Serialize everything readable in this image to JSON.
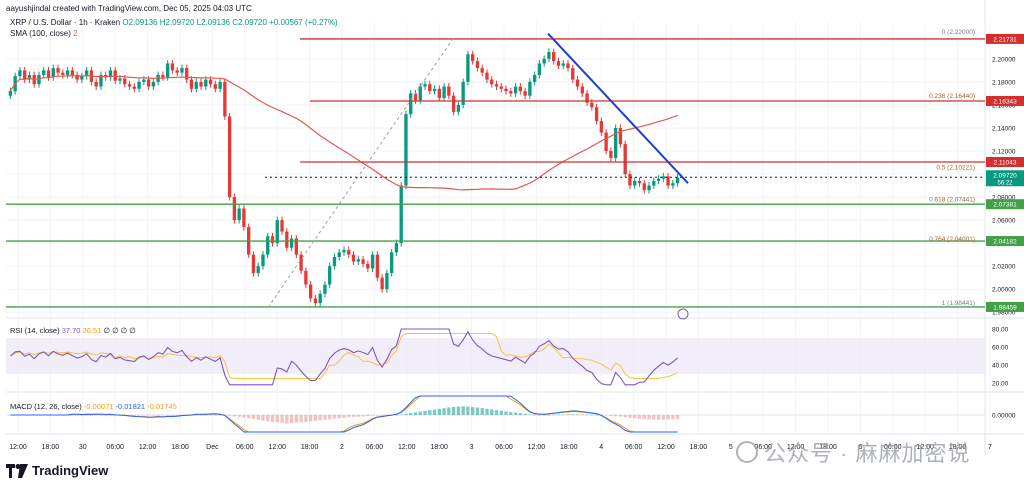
{
  "header": {
    "credit": "aayushjindal created with TradingView.com, Dec 05, 2025 04:03 UTC",
    "symbol": "XRP / U.S. Dollar · 1h · Kraken",
    "ohlc": "O2.09136 H2.09720 L2.09136 C2.09720 +0.00567 (+0.27%)",
    "sma_label": "SMA (100, close)",
    "sma_value": "2"
  },
  "rsi": {
    "label": "RSI (14, close)",
    "v1": "37.70",
    "v2": "26.51",
    "zeros": "∅ ∅ ∅ ∅"
  },
  "macd": {
    "label": "MACD (12, 26, close)",
    "v1": "-0.00071",
    "v2": "-0.01821",
    "v3": "-0.01745"
  },
  "brand": "TradingView",
  "watermark": "公众号 · 麻麻加密说",
  "colors": {
    "up": "#089981",
    "down": "#e53935",
    "sma": "#e05a4f",
    "trend": "#1e3fd6",
    "support": "#43a047",
    "resistance": "#d32f2f",
    "rsi": "#7e57c2",
    "rsi_ma": "#f5c242",
    "macd": "#2962ff",
    "signal": "#ff9800"
  },
  "chart_data": {
    "type": "candlestick",
    "y_ticks": [
      "2.20000",
      "2.18000",
      "2.16000",
      "2.14000",
      "2.12000",
      "2.10000",
      "2.08000",
      "2.06000",
      "2.04000",
      "2.02000",
      "2.00000",
      "1.98000"
    ],
    "ylim": [
      1.975,
      2.232
    ],
    "x_ticks": [
      "12:00",
      "18:00",
      "30",
      "06:00",
      "12:00",
      "18:00",
      "Dec",
      "06:00",
      "12:00",
      "18:00",
      "2",
      "06:00",
      "12:00",
      "18:00",
      "3",
      "06:00",
      "12:00",
      "18:00",
      "4",
      "06:00",
      "12:00",
      "18:00",
      "5",
      "06:00",
      "12:00",
      "18:00",
      "6",
      "06:00",
      "12:00",
      "18:00",
      "7"
    ],
    "horizontal_levels": [
      {
        "value": 2.21731,
        "label": "2.21731",
        "kind": "resistance"
      },
      {
        "value": 2.16343,
        "label": "2.16343",
        "kind": "resistance"
      },
      {
        "value": 2.11043,
        "label": "2.11043",
        "kind": "resistance"
      },
      {
        "value": 2.07381,
        "label": "2.07381",
        "kind": "support"
      },
      {
        "value": 2.04182,
        "label": "2.04182",
        "kind": "support"
      },
      {
        "value": 1.98459,
        "label": "1.98459",
        "kind": "support"
      }
    ],
    "last_price": {
      "value": 2.0972,
      "label": "2.09720",
      "countdown": "56:22"
    },
    "fib_levels": [
      {
        "ratio": "0",
        "value": "2.22000"
      },
      {
        "ratio": "0.236",
        "value": "2.16440"
      },
      {
        "ratio": "0.5",
        "value": "2.10221"
      },
      {
        "ratio": "0.618",
        "value": "2.07441"
      },
      {
        "ratio": "0.764",
        "value": "2.04001"
      },
      {
        "ratio": "1",
        "value": "1.98441"
      }
    ],
    "rsi_ticks": [
      "80.00",
      "60.00",
      "40.00",
      "20.00"
    ],
    "macd_ticks": [
      "0.00000"
    ],
    "closes": [
      2.172,
      2.185,
      2.19,
      2.182,
      2.186,
      2.178,
      2.186,
      2.19,
      2.184,
      2.192,
      2.188,
      2.186,
      2.19,
      2.186,
      2.182,
      2.185,
      2.19,
      2.18,
      2.176,
      2.186,
      2.184,
      2.19,
      2.181,
      2.183,
      2.178,
      2.176,
      2.174,
      2.18,
      2.182,
      2.176,
      2.18,
      2.186,
      2.184,
      2.196,
      2.19,
      2.188,
      2.192,
      2.182,
      2.174,
      2.18,
      2.176,
      2.182,
      2.178,
      2.174,
      2.18,
      2.15,
      2.08,
      2.06,
      2.07,
      2.054,
      2.03,
      2.014,
      2.02,
      2.03,
      2.046,
      2.04,
      2.06,
      2.05,
      2.036,
      2.044,
      2.03,
      2.016,
      2.004,
      1.992,
      1.988,
      1.996,
      2.004,
      2.02,
      2.028,
      2.032,
      2.034,
      2.03,
      2.024,
      2.026,
      2.022,
      2.018,
      2.03,
      2.01,
      2.0,
      2.014,
      2.032,
      2.04,
      2.09,
      2.152,
      2.17,
      2.164,
      2.176,
      2.178,
      2.172,
      2.174,
      2.166,
      2.176,
      2.168,
      2.154,
      2.16,
      2.18,
      2.204,
      2.198,
      2.192,
      2.188,
      2.182,
      2.178,
      2.176,
      2.174,
      2.172,
      2.17,
      2.176,
      2.172,
      2.168,
      2.18,
      2.186,
      2.196,
      2.2,
      2.206,
      2.198,
      2.194,
      2.196,
      2.192,
      2.182,
      2.176,
      2.17,
      2.162,
      2.158,
      2.146,
      2.136,
      2.12,
      2.114,
      2.14,
      2.126,
      2.1,
      2.09,
      2.094,
      2.092,
      2.086,
      2.09,
      2.094,
      2.096,
      2.098,
      2.09,
      2.092,
      2.097
    ]
  }
}
